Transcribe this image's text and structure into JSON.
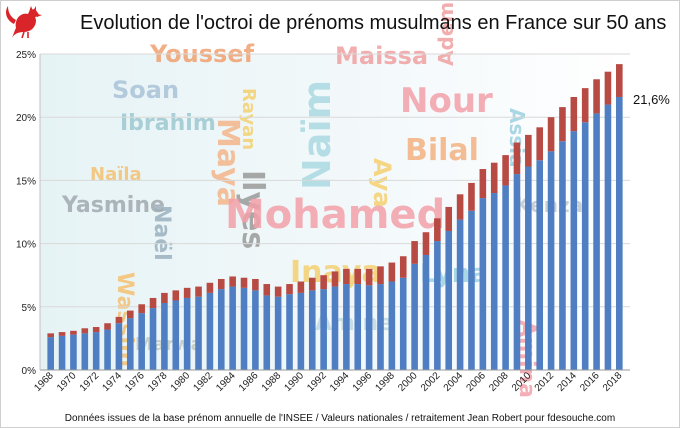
{
  "title": "Evolution de l'octroi de prénoms musulmans en France sur 50 ans",
  "footer": "Données issues de la base prénom annuelle de l'INSEE / Valeurs nationales / retraitement Jean Robert pour fdesouche.com",
  "colors": {
    "blue": "#4f7fc2",
    "red": "#b84a44",
    "grid": "#d9d9d9"
  },
  "logo_icon": "rooster-icon",
  "background_names": [
    "Youssef",
    "Maissa",
    "Adem",
    "Soan",
    "Maya",
    "Rayan",
    "Naïm",
    "Assia",
    "Nour",
    "Ibrahim",
    "Naël",
    "Aya",
    "Ilyes",
    "Bilal",
    "Naïla",
    "Yasmine",
    "Mohamed",
    "Kenza",
    "Wassim",
    "Inaya",
    "Lyna",
    "Amine",
    "Amina",
    "Marwa"
  ],
  "chart_data": {
    "type": "bar",
    "title": "Evolution de l'octroi de prénoms musulmans en France sur 50 ans",
    "xlabel": "",
    "ylabel": "",
    "ylim": [
      0,
      25
    ],
    "yticks": [
      "0%",
      "5%",
      "10%",
      "15%",
      "20%",
      "25%"
    ],
    "grid": true,
    "stacked": true,
    "x": [
      1968,
      1969,
      1970,
      1971,
      1972,
      1973,
      1974,
      1975,
      1976,
      1977,
      1978,
      1979,
      1980,
      1981,
      1982,
      1983,
      1984,
      1985,
      1986,
      1987,
      1988,
      1989,
      1990,
      1991,
      1992,
      1993,
      1994,
      1995,
      1996,
      1997,
      1998,
      1999,
      2000,
      2001,
      2002,
      2003,
      2004,
      2005,
      2006,
      2007,
      2008,
      2009,
      2010,
      2011,
      2012,
      2013,
      2014,
      2015,
      2016,
      2017,
      2018
    ],
    "xtick_labels": [
      "1968",
      "1970",
      "1972",
      "1974",
      "1976",
      "1978",
      "1980",
      "1982",
      "1984",
      "1986",
      "1988",
      "1990",
      "1992",
      "1994",
      "1996",
      "1998",
      "2000",
      "2002",
      "2004",
      "2006",
      "2008",
      "2010",
      "2012",
      "2014",
      "2016",
      "2018"
    ],
    "series": [
      {
        "values": [
          2.6,
          2.7,
          2.8,
          2.9,
          3.0,
          3.2,
          3.7,
          4.1,
          4.5,
          4.9,
          5.3,
          5.5,
          5.7,
          5.8,
          6.1,
          6.4,
          6.6,
          6.5,
          6.3,
          5.9,
          5.8,
          6.0,
          6.1,
          6.3,
          6.4,
          6.6,
          6.8,
          6.8,
          6.7,
          6.8,
          7.0,
          7.3,
          8.4,
          9.1,
          10.2,
          11.0,
          11.9,
          12.6,
          13.6,
          14.0,
          14.6,
          15.5,
          16.1,
          16.6,
          17.3,
          18.1,
          18.9,
          19.6,
          20.3,
          21.0,
          21.6
        ]
      },
      {
        "values": [
          0.3,
          0.3,
          0.3,
          0.4,
          0.4,
          0.5,
          0.5,
          0.6,
          0.7,
          0.8,
          0.8,
          0.8,
          0.8,
          0.8,
          0.8,
          0.8,
          0.8,
          0.8,
          0.9,
          0.9,
          0.8,
          0.8,
          0.9,
          1.0,
          1.1,
          1.2,
          1.2,
          1.2,
          1.3,
          1.4,
          1.5,
          1.7,
          1.8,
          1.8,
          1.8,
          1.9,
          2.0,
          2.2,
          2.3,
          2.4,
          2.4,
          2.5,
          2.5,
          2.6,
          2.7,
          2.7,
          2.7,
          2.7,
          2.7,
          2.6,
          2.6
        ]
      }
    ],
    "annotation": "21,6%"
  }
}
